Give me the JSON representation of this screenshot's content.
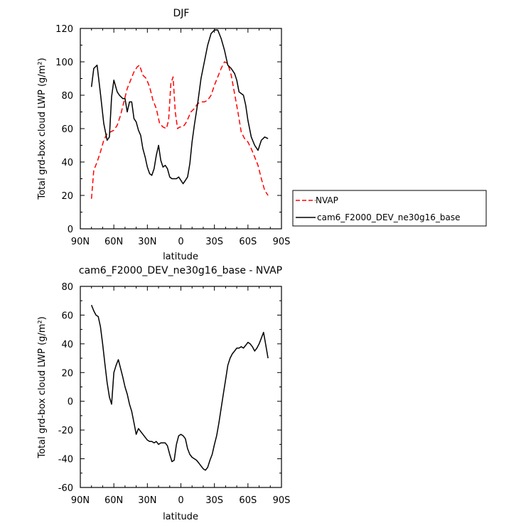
{
  "chart_data": [
    {
      "type": "line",
      "title": "DJF",
      "xlabel": "latitude",
      "ylabel": "Total grd-box cloud LWP (g/m²)",
      "xlim": [
        90,
        -90
      ],
      "ylim": [
        0,
        120
      ],
      "x_ticks": [
        90,
        60,
        30,
        0,
        -30,
        -60,
        -90
      ],
      "x_tick_labels": [
        "90N",
        "60N",
        "30N",
        "0",
        "30S",
        "60S",
        "90S"
      ],
      "y_ticks": [
        0,
        20,
        40,
        60,
        80,
        100,
        120
      ],
      "y_tick_labels": [
        "0",
        "20",
        "40",
        "60",
        "80",
        "100",
        "120"
      ],
      "legend_position": "right",
      "series": [
        {
          "name": "NVAP",
          "color": "#ff0000",
          "dash": "dashed",
          "x": [
            80,
            78,
            75,
            72,
            69,
            66,
            63,
            60,
            57,
            54,
            51,
            48,
            45,
            42,
            39,
            37,
            34,
            31,
            28,
            25,
            22,
            19,
            16,
            13,
            11,
            9,
            7,
            5,
            3,
            1,
            -1,
            -3,
            -5,
            -7,
            -9,
            -12,
            -15,
            -18,
            -21,
            -24,
            -27,
            -30,
            -33,
            -36,
            -39,
            -42,
            -45,
            -48,
            -51,
            -54,
            -57,
            -60,
            -63,
            -66,
            -69,
            -72,
            -75,
            -78
          ],
          "y": [
            18,
            35,
            40,
            46,
            53,
            57,
            58,
            59,
            62,
            68,
            76,
            84,
            89,
            94,
            97,
            98,
            92,
            90,
            85,
            77,
            72,
            63,
            61,
            60,
            65,
            87,
            91,
            70,
            60,
            61,
            61,
            62,
            64,
            67,
            70,
            72,
            75,
            76,
            76,
            77,
            80,
            86,
            91,
            96,
            100,
            99,
            92,
            81,
            70,
            58,
            54,
            52,
            48,
            43,
            38,
            30,
            23,
            20
          ]
        },
        {
          "name": "cam6_F2000_DEV_ne30g16_base",
          "color": "#000000",
          "dash": "solid",
          "x": [
            80,
            78,
            75,
            72,
            69,
            66,
            64,
            62,
            60,
            57,
            55,
            52,
            50,
            48,
            46,
            44,
            42,
            40,
            38,
            36,
            34,
            32,
            30,
            28,
            26,
            24,
            22,
            20,
            18,
            16,
            14,
            12,
            10,
            8,
            6,
            4,
            2,
            0,
            -2,
            -4,
            -6,
            -8,
            -10,
            -12,
            -15,
            -18,
            -21,
            -24,
            -27,
            -30,
            -33,
            -36,
            -39,
            -42,
            -45,
            -48,
            -50,
            -52,
            -54,
            -56,
            -58,
            -60,
            -63,
            -66,
            -69,
            -72,
            -75,
            -78
          ],
          "y": [
            85,
            96,
            98,
            81,
            63,
            53,
            55,
            79,
            89,
            82,
            80,
            78,
            78,
            70,
            76,
            76,
            66,
            64,
            59,
            56,
            48,
            43,
            37,
            33,
            32,
            36,
            44,
            50,
            41,
            37,
            38,
            36,
            31,
            30,
            30,
            30,
            31,
            29,
            27,
            29,
            31,
            39,
            52,
            62,
            75,
            90,
            100,
            110,
            117,
            119,
            119,
            114,
            107,
            98,
            96,
            93,
            89,
            82,
            81,
            80,
            74,
            65,
            55,
            50,
            47,
            53,
            55,
            54
          ]
        }
      ]
    },
    {
      "type": "line",
      "title": "cam6_F2000_DEV_ne30g16_base - NVAP",
      "xlabel": "latitude",
      "ylabel": "Total grd-box cloud LWP (g/m²)",
      "xlim": [
        90,
        -90
      ],
      "ylim": [
        -60,
        80
      ],
      "x_ticks": [
        90,
        60,
        30,
        0,
        -30,
        -60,
        -90
      ],
      "x_tick_labels": [
        "90N",
        "60N",
        "30N",
        "0",
        "30S",
        "60S",
        "90S"
      ],
      "y_ticks": [
        -60,
        -40,
        -20,
        0,
        20,
        40,
        60,
        80
      ],
      "y_tick_labels": [
        "-60",
        "-40",
        "-20",
        "0",
        "20",
        "40",
        "60",
        "80"
      ],
      "series": [
        {
          "color": "#000000",
          "dash": "solid",
          "x": [
            80,
            78,
            76,
            74,
            72,
            70,
            68,
            66,
            64,
            62,
            60,
            58,
            56,
            54,
            52,
            50,
            48,
            46,
            44,
            42,
            40,
            38,
            36,
            34,
            32,
            30,
            28,
            26,
            24,
            22,
            20,
            18,
            16,
            14,
            12,
            10,
            8,
            6,
            4,
            2,
            0,
            -2,
            -4,
            -6,
            -8,
            -10,
            -12,
            -14,
            -16,
            -18,
            -20,
            -22,
            -24,
            -26,
            -28,
            -30,
            -32,
            -34,
            -36,
            -38,
            -40,
            -42,
            -44,
            -46,
            -48,
            -50,
            -52,
            -54,
            -56,
            -58,
            -60,
            -62,
            -64,
            -66,
            -68,
            -70,
            -72,
            -74,
            -76,
            -78
          ],
          "y": [
            67,
            63,
            60,
            59,
            52,
            40,
            26,
            13,
            3,
            -2,
            20,
            25,
            29,
            23,
            17,
            10,
            5,
            -2,
            -7,
            -15,
            -23,
            -19,
            -21,
            -23,
            -25,
            -27,
            -28,
            -28,
            -29,
            -28,
            -30,
            -29,
            -29,
            -29,
            -31,
            -37,
            -42,
            -41,
            -30,
            -24,
            -23,
            -24,
            -26,
            -33,
            -37,
            -39,
            -40,
            -41,
            -43,
            -45,
            -47,
            -48,
            -46,
            -41,
            -37,
            -30,
            -24,
            -15,
            -5,
            5,
            15,
            25,
            30,
            33,
            35,
            37,
            37,
            38,
            37,
            39,
            41,
            40,
            38,
            35,
            37,
            40,
            44,
            48,
            39,
            30
          ]
        }
      ]
    }
  ]
}
